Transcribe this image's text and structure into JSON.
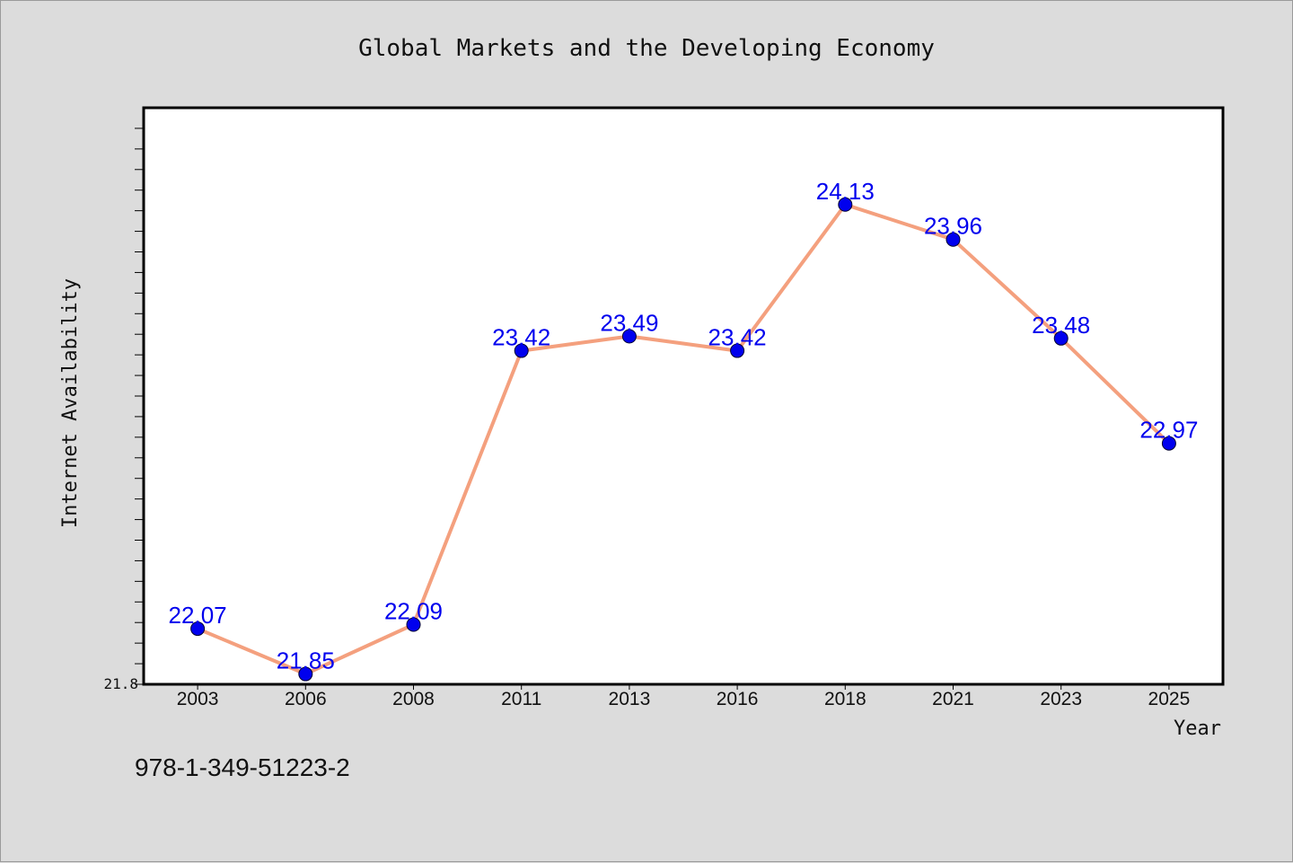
{
  "chart_data": {
    "type": "line",
    "title": "Global Markets and the Developing Economy",
    "xlabel": "Year",
    "ylabel": "Internet Availability",
    "categories": [
      "2003",
      "2006",
      "2008",
      "2011",
      "2013",
      "2016",
      "2018",
      "2021",
      "2023",
      "2025"
    ],
    "series": [
      {
        "values": [
          22.07,
          21.85,
          22.09,
          23.42,
          23.49,
          23.42,
          24.13,
          23.96,
          23.48,
          22.97
        ]
      }
    ],
    "data_labels": [
      "22.07",
      "21.85",
      "22.09",
      "23.42",
      "23.49",
      "23.42",
      "24.13",
      "23.96",
      "23.48",
      "22.97"
    ],
    "ylim": [
      21.8,
      24.6
    ],
    "y_tick_labels": [
      "21.8"
    ],
    "grid": false,
    "legend": "none",
    "colors": {
      "line": "#f4a07e",
      "marker": "#0000ee",
      "data_label": "#0000ee",
      "plot_bg": "#ffffff",
      "figure_bg": "#dcdcdc"
    }
  },
  "footer": {
    "isbn": "978-1-349-51223-2"
  }
}
